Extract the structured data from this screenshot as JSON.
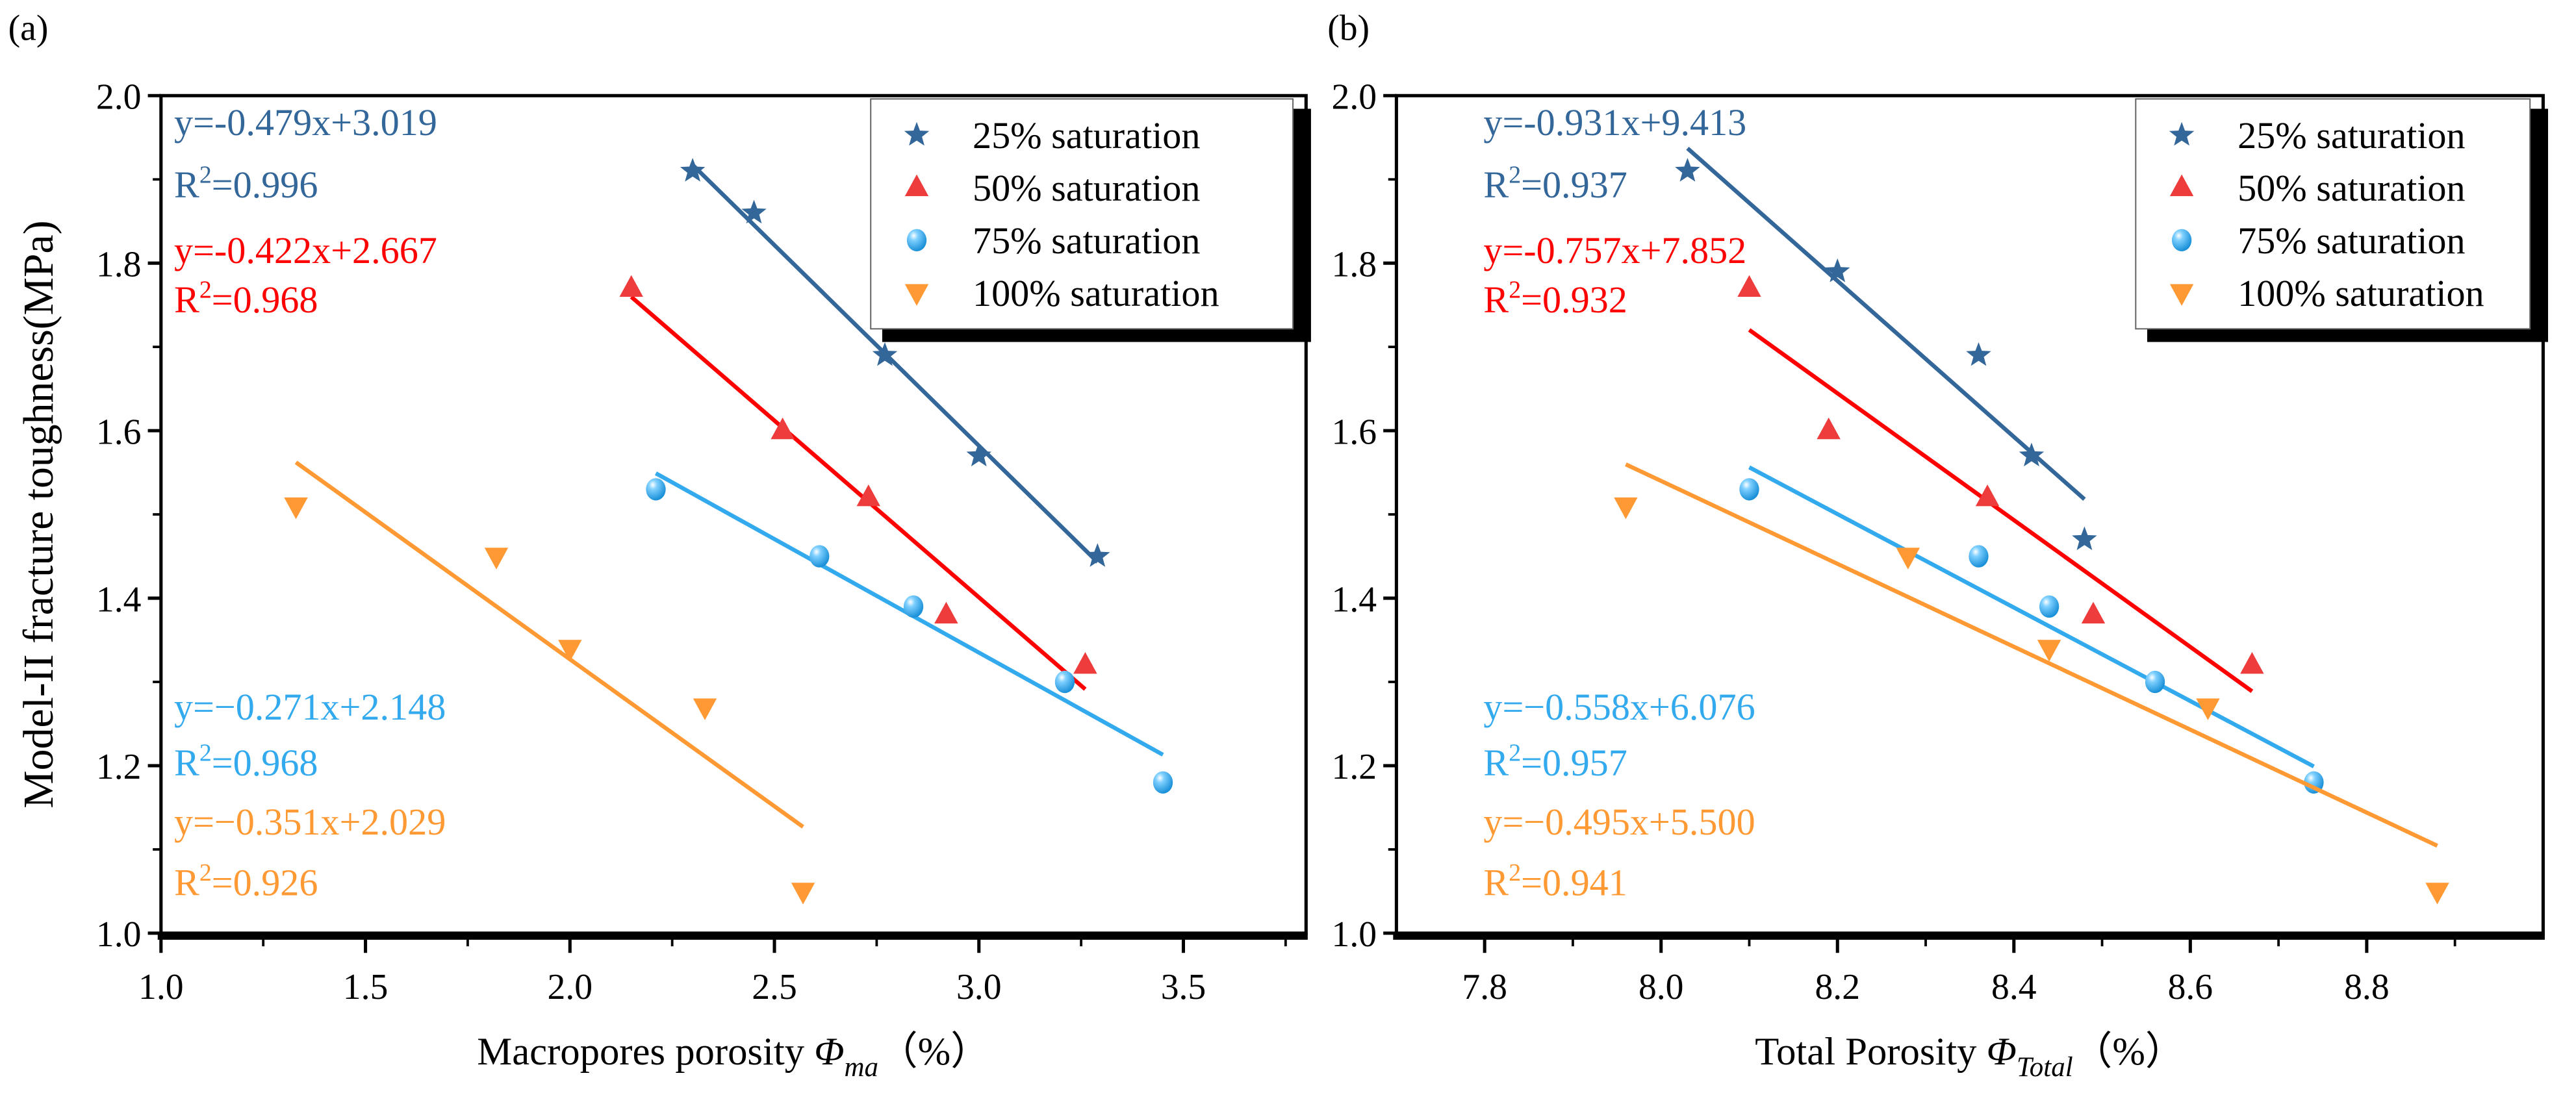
{
  "chart_data": [
    {
      "type": "scatter",
      "panel_label": "(a)",
      "xlabel": "Macropores porosity",
      "xlabel_symbol": "Φ",
      "xlabel_sub": "ma",
      "xlabel_unit": "（%）",
      "ylabel": "Model-II fracture toughness(MPa)",
      "xlim": [
        1.0,
        3.8
      ],
      "ylim": [
        1.0,
        2.0
      ],
      "xticks": [
        "1.0",
        "1.5",
        "2.0",
        "2.5",
        "3.0",
        "3.5"
      ],
      "yticks": [
        "1.0",
        "1.2",
        "1.4",
        "1.6",
        "1.8",
        "2.0"
      ],
      "legend_position": "top-right",
      "series": [
        {
          "name": "25% saturation",
          "marker": "star",
          "color": "#336699",
          "x": [
            2.3,
            2.45,
            2.77,
            3.0,
            3.29
          ],
          "y": [
            1.91,
            1.86,
            1.69,
            1.57,
            1.45
          ],
          "fit": {
            "slope": -0.479,
            "intercept": 3.019,
            "xrange": [
              2.3,
              3.29
            ]
          },
          "equation": "y=-0.479x+3.019",
          "r2": "=0.996"
        },
        {
          "name": "50% saturation",
          "marker": "triangle-up",
          "color": "#ff0000",
          "x": [
            2.15,
            2.52,
            2.73,
            2.92,
            3.26
          ],
          "y": [
            1.77,
            1.6,
            1.52,
            1.38,
            1.32
          ],
          "fit": {
            "slope": -0.422,
            "intercept": 2.667,
            "xrange": [
              2.15,
              3.26
            ]
          },
          "equation": "y=-0.422x+2.667",
          "r2": "=0.968"
        },
        {
          "name": "75% saturation",
          "marker": "circle",
          "color": "#33aaee",
          "x": [
            2.21,
            2.61,
            2.84,
            3.21,
            3.45
          ],
          "y": [
            1.53,
            1.45,
            1.39,
            1.3,
            1.18
          ],
          "fit": {
            "slope": -0.271,
            "intercept": 2.148,
            "xrange": [
              2.21,
              3.45
            ]
          },
          "equation": "y=−0.271x+2.148",
          "r2": "=0.968"
        },
        {
          "name": "100% saturation",
          "marker": "triangle-down",
          "color": "#ff9933",
          "x": [
            1.33,
            1.82,
            2.0,
            2.33,
            2.57
          ],
          "y": [
            1.51,
            1.45,
            1.34,
            1.27,
            1.05
          ],
          "fit": {
            "slope": -0.351,
            "intercept": 2.029,
            "xrange": [
              1.33,
              2.57
            ]
          },
          "equation": "y=−0.351x+2.029",
          "r2": "=0.926"
        }
      ]
    },
    {
      "type": "scatter",
      "panel_label": "(b)",
      "xlabel": "Total Porosity",
      "xlabel_symbol": "Φ",
      "xlabel_sub": "Total",
      "xlabel_unit": "（%）",
      "ylabel": "",
      "xlim": [
        7.7,
        9.0
      ],
      "ylim": [
        1.0,
        2.0
      ],
      "xticks": [
        "7.8",
        "8.0",
        "8.2",
        "8.4",
        "8.6",
        "8.8"
      ],
      "yticks": [
        "1.0",
        "1.2",
        "1.4",
        "1.6",
        "1.8",
        "2.0"
      ],
      "legend_position": "top-right",
      "series": [
        {
          "name": "25% saturation",
          "marker": "star",
          "color": "#336699",
          "x": [
            8.03,
            8.2,
            8.36,
            8.42,
            8.48
          ],
          "y": [
            1.91,
            1.79,
            1.69,
            1.57,
            1.47
          ],
          "fit": {
            "slope": -0.931,
            "intercept": 9.413,
            "xrange": [
              8.03,
              8.48
            ]
          },
          "equation": "y=-0.931x+9.413",
          "r2": "=0.937"
        },
        {
          "name": "50% saturation",
          "marker": "triangle-up",
          "color": "#ff0000",
          "x": [
            8.1,
            8.19,
            8.37,
            8.49,
            8.67
          ],
          "y": [
            1.77,
            1.6,
            1.52,
            1.38,
            1.32
          ],
          "fit": {
            "slope": -0.757,
            "intercept": 7.852,
            "xrange": [
              8.1,
              8.67
            ]
          },
          "equation": "y=-0.757x+7.852",
          "r2": "=0.932"
        },
        {
          "name": "75% saturation",
          "marker": "circle",
          "color": "#33aaee",
          "x": [
            8.1,
            8.36,
            8.44,
            8.56,
            8.74
          ],
          "y": [
            1.53,
            1.45,
            1.39,
            1.3,
            1.18
          ],
          "fit": {
            "slope": -0.558,
            "intercept": 6.076,
            "xrange": [
              8.1,
              8.74
            ]
          },
          "equation": "y=−0.558x+6.076",
          "r2": "=0.957"
        },
        {
          "name": "100% saturation",
          "marker": "triangle-down",
          "color": "#ff9933",
          "x": [
            7.96,
            8.28,
            8.44,
            8.62,
            8.88
          ],
          "y": [
            1.51,
            1.45,
            1.34,
            1.27,
            1.05
          ],
          "fit": {
            "slope": -0.495,
            "intercept": 5.5,
            "xrange": [
              7.96,
              8.88
            ]
          },
          "equation": "y=−0.495x+5.500",
          "r2": "=0.941"
        }
      ]
    }
  ]
}
